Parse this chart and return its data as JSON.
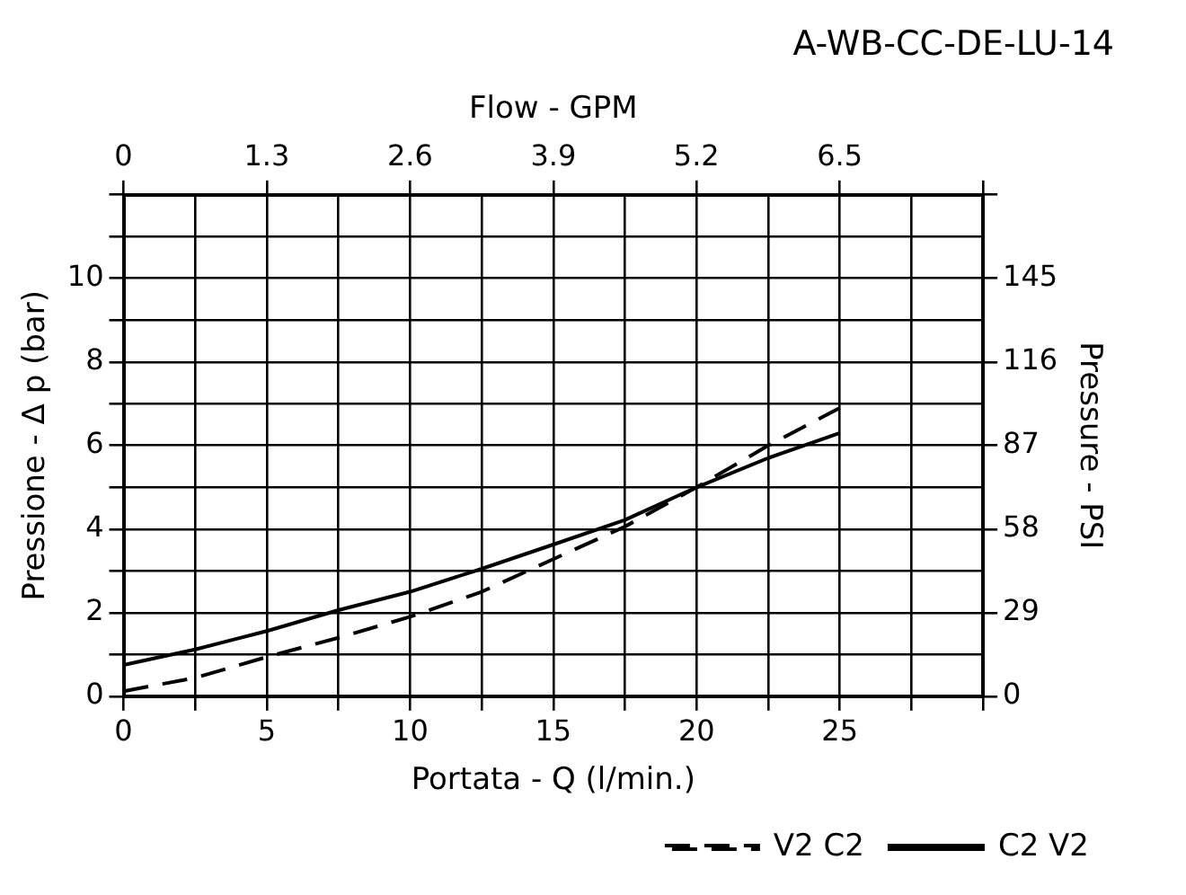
{
  "chart_data": {
    "type": "line",
    "title": "A-WB-CC-DE-LU-14",
    "xlabel": "Portata - Q (l/min.)",
    "x2label": "Flow - GPM",
    "ylabel": "Pressione - Δ p (bar)",
    "y2label": "Pressure - PSI",
    "xlim": [
      0,
      30
    ],
    "xticks": [
      0,
      {
        "value": 2.5,
        "label": null
      },
      5,
      {
        "value": 7.5,
        "label": null
      },
      10,
      {
        "value": 12.5,
        "label": null
      },
      15,
      {
        "value": 17.5,
        "label": null
      },
      20,
      {
        "value": 22.5,
        "label": null
      },
      25,
      {
        "value": 27.5,
        "label": null
      },
      {
        "value": 30,
        "label": null
      }
    ],
    "x2lim": [
      0,
      7.8
    ],
    "x2ticks": [
      0,
      1.3,
      2.6,
      3.9,
      5.2,
      6.5,
      {
        "value": 7.8,
        "label": null
      }
    ],
    "ylim": [
      0,
      12
    ],
    "yticks": [
      0,
      {
        "value": 1,
        "label": null
      },
      2,
      {
        "value": 3,
        "label": null
      },
      4,
      {
        "value": 5,
        "label": null
      },
      6,
      {
        "value": 7,
        "label": null
      },
      8,
      {
        "value": 9,
        "label": null
      },
      10,
      {
        "value": 11,
        "label": null
      },
      {
        "value": 12,
        "label": null
      }
    ],
    "y2lim": [
      0,
      174
    ],
    "y2ticks": [
      0,
      29,
      58,
      87,
      116,
      145,
      {
        "value": 174,
        "label": null
      }
    ],
    "grid": true,
    "legend": "bottom",
    "marker": "none",
    "series": [
      {
        "name": "V2 C2",
        "color": "#000000",
        "line_style": "dashed",
        "x": [
          0,
          2.5,
          5,
          7.5,
          10,
          12.5,
          15,
          17.5,
          20,
          22.5,
          25
        ],
        "values": [
          0.12,
          0.44,
          0.94,
          1.4,
          1.9,
          2.5,
          3.28,
          4.06,
          5.0,
          6.0,
          6.9
        ]
      },
      {
        "name": "C2 V2",
        "color": "#000000",
        "line_style": "solid",
        "x": [
          0,
          2.5,
          5,
          7.5,
          10,
          12.5,
          15,
          17.5,
          20,
          22.5,
          25
        ],
        "values": [
          0.75,
          1.12,
          1.56,
          2.06,
          2.5,
          3.05,
          3.63,
          4.22,
          5.0,
          5.7,
          6.3
        ]
      }
    ]
  }
}
